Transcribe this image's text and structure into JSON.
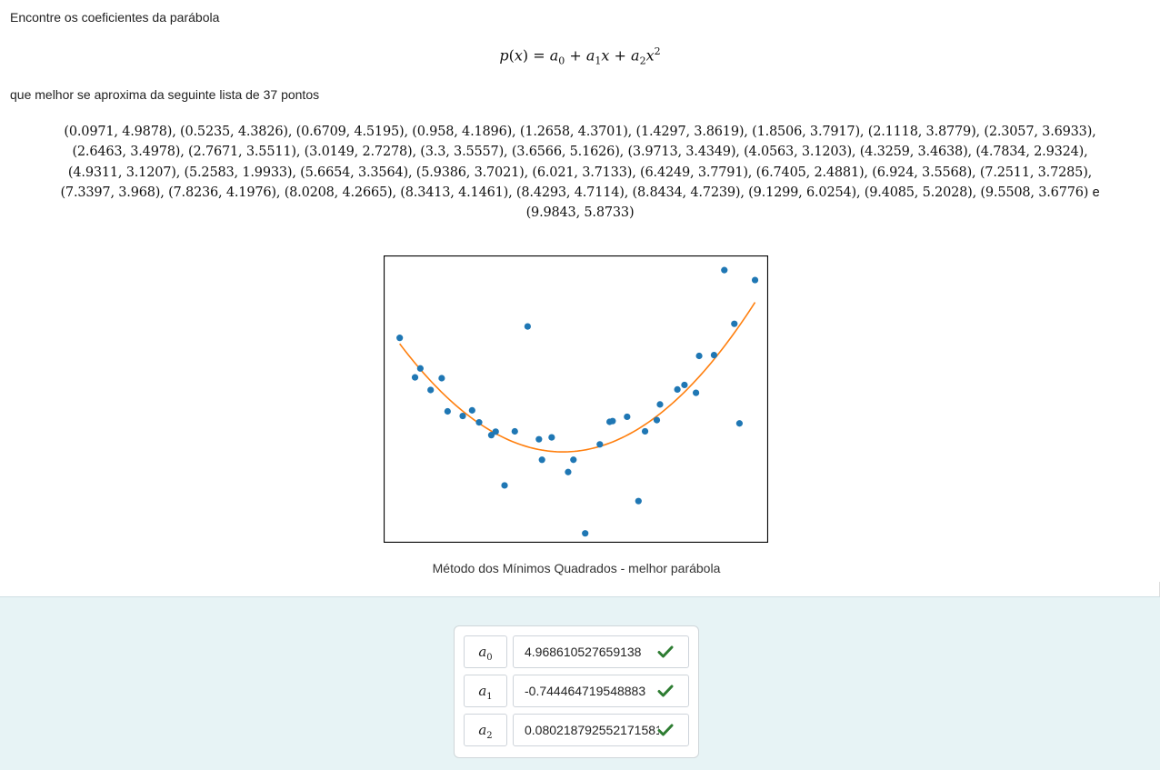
{
  "intro": "Encontre os coeficientes da parábola",
  "formula": {
    "lhs": "p(x)",
    "equals": "=",
    "terms": [
      "a",
      "0",
      "+",
      "a",
      "1",
      "x",
      "+",
      "a",
      "2",
      "x",
      "2"
    ]
  },
  "intro2": "que melhor se aproxima da seguinte lista de 37 pontos",
  "points_lines": [
    "(0.0971, 4.9878), (0.5235, 4.3826), (0.6709, 4.5195), (0.958, 4.1896), (1.2658, 4.3701), (1.4297, 3.8619), (1.8506, 3.7917), (2.1118, 3.8779), (2.3057, 3.6933),",
    "(2.6463, 3.4978), (2.7671, 3.5511), (3.0149, 2.7278), (3.3, 3.5557), (3.6566, 5.1626), (3.9713, 3.4349), (4.0563, 3.1203), (4.3259, 3.4638), (4.7834, 2.9324),",
    "(4.9311, 3.1207), (5.2583, 1.9933), (5.6654, 3.3564), (5.9386, 3.7021), (6.021, 3.7133), (6.4249, 3.7791), (6.7405, 2.4881), (6.924, 3.5568), (7.2511, 3.7285),",
    "(7.3397, 3.968), (7.8236, 4.1976), (8.0208, 4.2665), (8.3413, 4.1461), (8.4293, 4.7114), (8.8434, 4.7239), (9.1299, 6.0254), (9.4085, 5.2028), (9.5508, 3.6776)",
    "(9.9843, 5.8733)"
  ],
  "points_conjunction": "e",
  "caption": "Método dos Mínimos Quadrados - melhor parábola",
  "answers": [
    {
      "label": "a",
      "sub": "0",
      "value": "4.968610527659138",
      "status": "correct"
    },
    {
      "label": "a",
      "sub": "1",
      "value": "-0.744464719548883",
      "status": "correct"
    },
    {
      "label": "a",
      "sub": "2",
      "value": "0.080218792552171581",
      "status": "correct"
    }
  ],
  "colors": {
    "scatter": "#1f77b4",
    "fit_line": "#ff7f0e",
    "answer_area_bg": "#e7f3f5",
    "check": "#2e7d32"
  },
  "chart_data": {
    "type": "scatter",
    "title": "",
    "xlabel": "",
    "ylabel": "",
    "xlim": [
      -0.35,
      10.35
    ],
    "ylim": [
      1.85,
      6.25
    ],
    "axes_ticks": false,
    "grid": false,
    "series": [
      {
        "kind": "scatter",
        "x": [
          0.0971,
          0.5235,
          0.6709,
          0.958,
          1.2658,
          1.4297,
          1.8506,
          2.1118,
          2.3057,
          2.6463,
          2.7671,
          3.0149,
          3.3,
          3.6566,
          3.9713,
          4.0563,
          4.3259,
          4.7834,
          4.9311,
          5.2583,
          5.6654,
          5.9386,
          6.021,
          6.4249,
          6.7405,
          6.924,
          7.2511,
          7.3397,
          7.8236,
          8.0208,
          8.3413,
          8.4293,
          8.8434,
          9.1299,
          9.4085,
          9.5508,
          9.9843
        ],
        "y": [
          4.9878,
          4.3826,
          4.5195,
          4.1896,
          4.3701,
          3.8619,
          3.7917,
          3.8779,
          3.6933,
          3.4978,
          3.5511,
          2.7278,
          3.5557,
          5.1626,
          3.4349,
          3.1203,
          3.4638,
          2.9324,
          3.1207,
          1.9933,
          3.3564,
          3.7021,
          3.7133,
          3.7791,
          2.4881,
          3.5568,
          3.7285,
          3.968,
          4.1976,
          4.2665,
          4.1461,
          4.7114,
          4.7239,
          6.0254,
          5.2028,
          3.6776,
          5.8733
        ]
      },
      {
        "kind": "line",
        "coefficients": [
          4.968610527659138,
          -0.744464719548883,
          0.0802187925521715
        ],
        "x_range": [
          0.0971,
          9.9843
        ]
      }
    ]
  }
}
